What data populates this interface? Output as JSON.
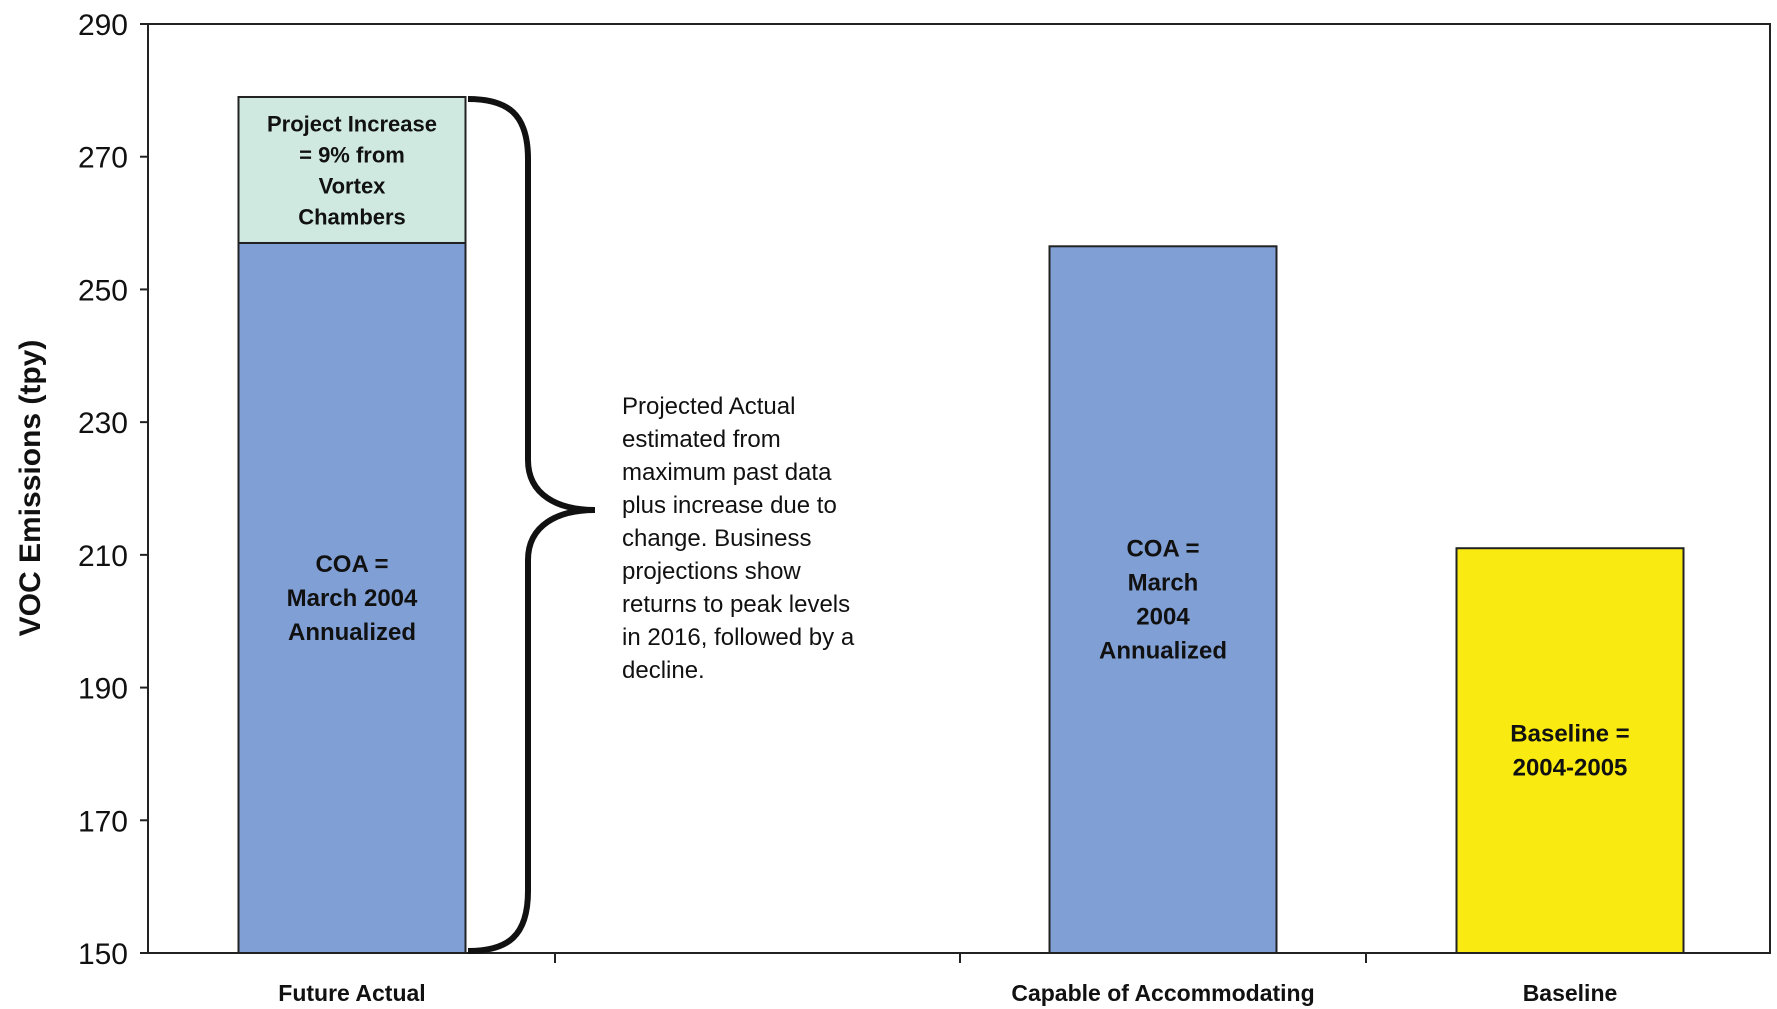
{
  "chart_data": {
    "type": "bar",
    "ylabel": "VOC Emissions (tpy)",
    "ylim": [
      150,
      290
    ],
    "yticks": [
      150,
      170,
      190,
      210,
      230,
      250,
      270,
      290
    ],
    "categories": [
      "Future Actual",
      "Capable of Accommodating",
      "Baseline"
    ],
    "bars": [
      {
        "category": "Future Actual",
        "segments": [
          {
            "value": 257,
            "color": "#7f9fd5",
            "label": [
              "COA =",
              "March 2004",
              "Annualized"
            ]
          },
          {
            "value": 22,
            "color": "#cfe9e1",
            "label": [
              "Project Increase",
              "= 9% from",
              "Vortex",
              "Chambers"
            ]
          }
        ]
      },
      {
        "category": "Capable of Accommodating",
        "segments": [
          {
            "value": 256.5,
            "color": "#7f9fd5",
            "label": [
              "COA =",
              "March",
              "2004",
              "Annualized"
            ]
          }
        ]
      },
      {
        "category": "Baseline",
        "segments": [
          {
            "value": 211,
            "color": "#f9ea12",
            "label": [
              "Baseline =",
              "2004-2005"
            ]
          }
        ]
      }
    ],
    "annotation": {
      "lines": [
        "Projected Actual",
        "estimated from",
        "maximum past data",
        "plus increase due to",
        "change.  Business",
        "projections show",
        "returns to peak levels",
        "in 2016, followed by a",
        "decline."
      ]
    },
    "grid": false,
    "legend": "none"
  }
}
